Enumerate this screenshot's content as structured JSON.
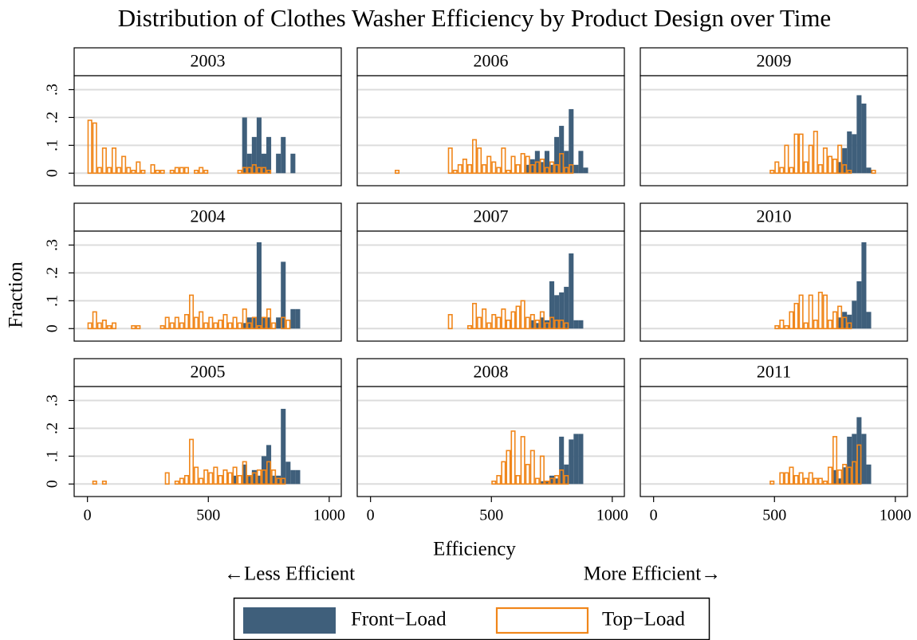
{
  "title": "Distribution of Clothes Washer Efficiency by Product Design over Time",
  "xlabel": "Efficiency",
  "ylabel": "Fraction",
  "annotations": [
    "←Less Efficient",
    "More Efficient→"
  ],
  "xlim": [
    -55,
    1050
  ],
  "ylim": [
    -0.045,
    0.35
  ],
  "xticks": [
    0,
    500,
    1000
  ],
  "yticks": [
    0,
    {
      "value": 0.1,
      "label": ".1"
    },
    {
      "value": 0.2,
      "label": ".2"
    },
    {
      "value": 0.3,
      "label": ".3"
    }
  ],
  "grid": true,
  "chart_data": [
    {
      "type": "histogram",
      "title": "2003",
      "bins": [
        0,
        20,
        40,
        60,
        80,
        100,
        120,
        140,
        160,
        180,
        200,
        220,
        240,
        260,
        280,
        300,
        320,
        340,
        360,
        380,
        400,
        420,
        440,
        460,
        480,
        500,
        520,
        540,
        560,
        580,
        600,
        620,
        640,
        660,
        680,
        700,
        720,
        740,
        760,
        780,
        800,
        820,
        840,
        860
      ],
      "series": [
        {
          "name": "Front−Load",
          "color": "#3f5f7b",
          "filled": true,
          "values": [
            0,
            0,
            0,
            0,
            0,
            0,
            0,
            0,
            0,
            0,
            0,
            0,
            0,
            0,
            0,
            0,
            0,
            0,
            0,
            0,
            0,
            0,
            0,
            0,
            0,
            0,
            0,
            0,
            0,
            0,
            0,
            0,
            0.2,
            0.07,
            0.13,
            0.2,
            0.07,
            0.13,
            0,
            0.07,
            0.13,
            0,
            0.07
          ]
        },
        {
          "name": "Top−Load",
          "color": "#f0861a",
          "filled": false,
          "values": [
            0.19,
            0.18,
            0.02,
            0.09,
            0.02,
            0.09,
            0.02,
            0.06,
            0.02,
            0.01,
            0.04,
            0.01,
            0,
            0.03,
            0.01,
            0.01,
            0,
            0.01,
            0.02,
            0.02,
            0.02,
            0,
            0.01,
            0.02,
            0.01,
            0,
            0,
            0,
            0,
            0,
            0,
            0.01,
            0.02,
            0.02,
            0.03,
            0.02,
            0.02,
            0.01,
            0,
            0,
            0,
            0,
            0
          ]
        }
      ]
    },
    {
      "type": "histogram",
      "title": "2004",
      "bins": [
        0,
        20,
        40,
        60,
        80,
        100,
        120,
        140,
        160,
        180,
        200,
        220,
        240,
        260,
        280,
        300,
        320,
        340,
        360,
        380,
        400,
        420,
        440,
        460,
        480,
        500,
        520,
        540,
        560,
        580,
        600,
        620,
        640,
        660,
        680,
        700,
        720,
        740,
        760,
        780,
        800,
        820,
        840,
        860,
        880
      ],
      "series": [
        {
          "name": "Front−Load",
          "color": "#3f5f7b",
          "filled": true,
          "values": [
            0,
            0,
            0,
            0,
            0,
            0,
            0,
            0,
            0,
            0,
            0,
            0,
            0,
            0,
            0,
            0,
            0,
            0,
            0,
            0,
            0,
            0,
            0,
            0,
            0,
            0,
            0,
            0,
            0,
            0,
            0,
            0,
            0.02,
            0.04,
            0.04,
            0.31,
            0.04,
            0.04,
            0,
            0.04,
            0.24,
            0,
            0.07,
            0.07
          ]
        },
        {
          "name": "Top−Load",
          "color": "#f0861a",
          "filled": false,
          "values": [
            0.02,
            0.06,
            0.02,
            0.03,
            0.01,
            0.02,
            0,
            0,
            0,
            0.01,
            0.01,
            0,
            0,
            0,
            0,
            0.01,
            0.04,
            0.02,
            0.04,
            0.02,
            0.05,
            0.12,
            0.04,
            0.06,
            0.02,
            0.04,
            0.02,
            0.03,
            0.05,
            0.02,
            0.04,
            0.02,
            0.07,
            0.02,
            0.04,
            0.01,
            0.04,
            0.07,
            0.02,
            0,
            0.04,
            0.03,
            0,
            0
          ]
        }
      ]
    },
    {
      "type": "histogram",
      "title": "2005",
      "bins": [
        0,
        20,
        40,
        60,
        80,
        100,
        120,
        140,
        160,
        180,
        200,
        220,
        240,
        260,
        280,
        300,
        320,
        340,
        360,
        380,
        400,
        420,
        440,
        460,
        480,
        500,
        520,
        540,
        560,
        580,
        600,
        620,
        640,
        660,
        680,
        700,
        720,
        740,
        760,
        780,
        800,
        820,
        840,
        860,
        880
      ],
      "series": [
        {
          "name": "Front−Load",
          "color": "#3f5f7b",
          "filled": true,
          "values": [
            0,
            0,
            0,
            0,
            0,
            0,
            0,
            0,
            0,
            0,
            0,
            0,
            0,
            0,
            0,
            0,
            0,
            0,
            0,
            0,
            0,
            0,
            0,
            0,
            0,
            0,
            0,
            0,
            0,
            0,
            0.03,
            0,
            0.07,
            0.03,
            0.05,
            0.03,
            0.1,
            0.14,
            0.03,
            0.03,
            0.27,
            0.08,
            0.05,
            0.05
          ]
        },
        {
          "name": "Top−Load",
          "color": "#f0861a",
          "filled": false,
          "values": [
            0,
            0.01,
            0,
            0.01,
            0,
            0,
            0,
            0,
            0,
            0,
            0,
            0,
            0,
            0,
            0,
            0,
            0.04,
            0,
            0.01,
            0.02,
            0.03,
            0.16,
            0.06,
            0.02,
            0.05,
            0.04,
            0.06,
            0.03,
            0.05,
            0.04,
            0.06,
            0.03,
            0.08,
            0.03,
            0.04,
            0.05,
            0.05,
            0.08,
            0.05,
            0.02,
            0.02,
            0,
            0,
            0
          ]
        }
      ]
    },
    {
      "type": "histogram",
      "title": "2006",
      "bins": [
        100,
        120,
        140,
        160,
        180,
        200,
        220,
        240,
        260,
        280,
        300,
        320,
        340,
        360,
        380,
        400,
        420,
        440,
        460,
        480,
        500,
        520,
        540,
        560,
        580,
        600,
        620,
        640,
        660,
        680,
        700,
        720,
        740,
        760,
        780,
        800,
        820,
        840,
        860,
        880,
        900
      ],
      "series": [
        {
          "name": "Front−Load",
          "color": "#3f5f7b",
          "filled": true,
          "values": [
            0,
            0,
            0,
            0,
            0,
            0,
            0,
            0,
            0,
            0,
            0,
            0,
            0,
            0,
            0,
            0,
            0,
            0,
            0,
            0,
            0,
            0,
            0,
            0,
            0,
            0,
            0,
            0.03,
            0.05,
            0.08,
            0.04,
            0.08,
            0.03,
            0.13,
            0.17,
            0.08,
            0.23,
            0.03,
            0.08,
            0.02
          ]
        },
        {
          "name": "Top−Load",
          "color": "#f0861a",
          "filled": false,
          "values": [
            0.01,
            0,
            0,
            0,
            0,
            0,
            0,
            0,
            0,
            0,
            0,
            0.09,
            0.01,
            0.03,
            0.05,
            0.03,
            0.12,
            0.09,
            0.03,
            0.06,
            0.04,
            0.02,
            0.09,
            0.01,
            0.06,
            0.03,
            0.07,
            0.06,
            0.03,
            0.04,
            0.05,
            0.02,
            0.04,
            0.03,
            0.07,
            0.02,
            0.03,
            0,
            0,
            0
          ]
        }
      ]
    },
    {
      "type": "histogram",
      "title": "2007",
      "bins": [
        320,
        340,
        360,
        380,
        400,
        420,
        440,
        460,
        480,
        500,
        520,
        540,
        560,
        580,
        600,
        620,
        640,
        660,
        680,
        700,
        720,
        740,
        760,
        780,
        800,
        820,
        840,
        860,
        880
      ],
      "series": [
        {
          "name": "Front−Load",
          "color": "#3f5f7b",
          "filled": true,
          "values": [
            0,
            0,
            0,
            0,
            0,
            0,
            0,
            0,
            0,
            0,
            0,
            0,
            0,
            0,
            0,
            0,
            0,
            0.03,
            0.02,
            0.04,
            0.03,
            0.17,
            0.12,
            0.13,
            0.15,
            0.27,
            0.03,
            0.03
          ]
        },
        {
          "name": "Top−Load",
          "color": "#f0861a",
          "filled": false,
          "values": [
            0.05,
            0,
            0,
            0,
            0.01,
            0.09,
            0.04,
            0.07,
            0.02,
            0.05,
            0.04,
            0.07,
            0.03,
            0.06,
            0.08,
            0.1,
            0.04,
            0.05,
            0.03,
            0.06,
            0.02,
            0.04,
            0.03,
            0.03,
            0.02,
            0,
            0,
            0
          ]
        }
      ]
    },
    {
      "type": "histogram",
      "title": "2008",
      "bins": [
        500,
        520,
        540,
        560,
        580,
        600,
        620,
        640,
        660,
        680,
        700,
        720,
        740,
        760,
        780,
        800,
        820,
        840,
        860,
        880
      ],
      "series": [
        {
          "name": "Front−Load",
          "color": "#3f5f7b",
          "filled": true,
          "values": [
            0,
            0,
            0,
            0,
            0,
            0,
            0,
            0,
            0,
            0,
            0.01,
            0.01,
            0.03,
            0.02,
            0.17,
            0.07,
            0.16,
            0.18,
            0.18
          ]
        },
        {
          "name": "Top−Load",
          "color": "#f0861a",
          "filled": false,
          "values": [
            0.01,
            0.03,
            0.08,
            0.12,
            0.19,
            0.03,
            0.17,
            0.07,
            0.12,
            0.02,
            0.1,
            0.01,
            0.02,
            0.03,
            0.05,
            0.03,
            0,
            0,
            0
          ]
        }
      ]
    },
    {
      "type": "histogram",
      "title": "2009",
      "bins": [
        480,
        500,
        520,
        540,
        560,
        580,
        600,
        620,
        640,
        660,
        680,
        700,
        720,
        740,
        760,
        780,
        800,
        820,
        840,
        860,
        880,
        900,
        920
      ],
      "series": [
        {
          "name": "Front−Load",
          "color": "#3f5f7b",
          "filled": true,
          "values": [
            0,
            0,
            0,
            0,
            0,
            0,
            0,
            0,
            0,
            0,
            0,
            0,
            0,
            0,
            0.04,
            0.09,
            0.15,
            0.14,
            0.28,
            0.25,
            0.02,
            0
          ]
        },
        {
          "name": "Top−Load",
          "color": "#f0861a",
          "filled": false,
          "values": [
            0.01,
            0.04,
            0.02,
            0.1,
            0.02,
            0.14,
            0.14,
            0.04,
            0.1,
            0.15,
            0.03,
            0.09,
            0.06,
            0.05,
            0.1,
            0.03,
            0.01,
            0,
            0,
            0,
            0,
            0.01
          ]
        }
      ]
    },
    {
      "type": "histogram",
      "title": "2010",
      "bins": [
        500,
        520,
        540,
        560,
        580,
        600,
        620,
        640,
        660,
        680,
        700,
        720,
        740,
        760,
        780,
        800,
        820,
        840,
        860,
        880,
        900
      ],
      "series": [
        {
          "name": "Front−Load",
          "color": "#3f5f7b",
          "filled": true,
          "values": [
            0,
            0,
            0,
            0,
            0,
            0,
            0,
            0,
            0,
            0,
            0,
            0,
            0,
            0.04,
            0.06,
            0.05,
            0.1,
            0.17,
            0.31,
            0.06
          ]
        },
        {
          "name": "Top−Load",
          "color": "#f0861a",
          "filled": false,
          "values": [
            0.01,
            0.03,
            0.01,
            0.06,
            0.09,
            0.12,
            0.02,
            0.12,
            0.03,
            0.13,
            0.12,
            0.03,
            0.06,
            0.08,
            0.04,
            0.02,
            0,
            0,
            0,
            0
          ]
        }
      ]
    },
    {
      "type": "histogram",
      "title": "2011",
      "bins": [
        480,
        500,
        520,
        540,
        560,
        580,
        600,
        620,
        640,
        660,
        680,
        700,
        720,
        740,
        760,
        780,
        800,
        820,
        840,
        860,
        880,
        900,
        920
      ],
      "series": [
        {
          "name": "Front−Load",
          "color": "#3f5f7b",
          "filled": true,
          "values": [
            0,
            0,
            0,
            0,
            0,
            0,
            0,
            0,
            0,
            0,
            0,
            0,
            0,
            0.05,
            0.02,
            0.06,
            0.17,
            0.18,
            0.24,
            0.18,
            0.07,
            0
          ]
        },
        {
          "name": "Top−Load",
          "color": "#f0861a",
          "filled": false,
          "values": [
            0.01,
            0,
            0.04,
            0.04,
            0.06,
            0.03,
            0.04,
            0.02,
            0.04,
            0.02,
            0.02,
            0.01,
            0.06,
            0.17,
            0.05,
            0.07,
            0.06,
            0.08,
            0.14,
            0,
            0,
            0
          ]
        }
      ]
    }
  ]
}
